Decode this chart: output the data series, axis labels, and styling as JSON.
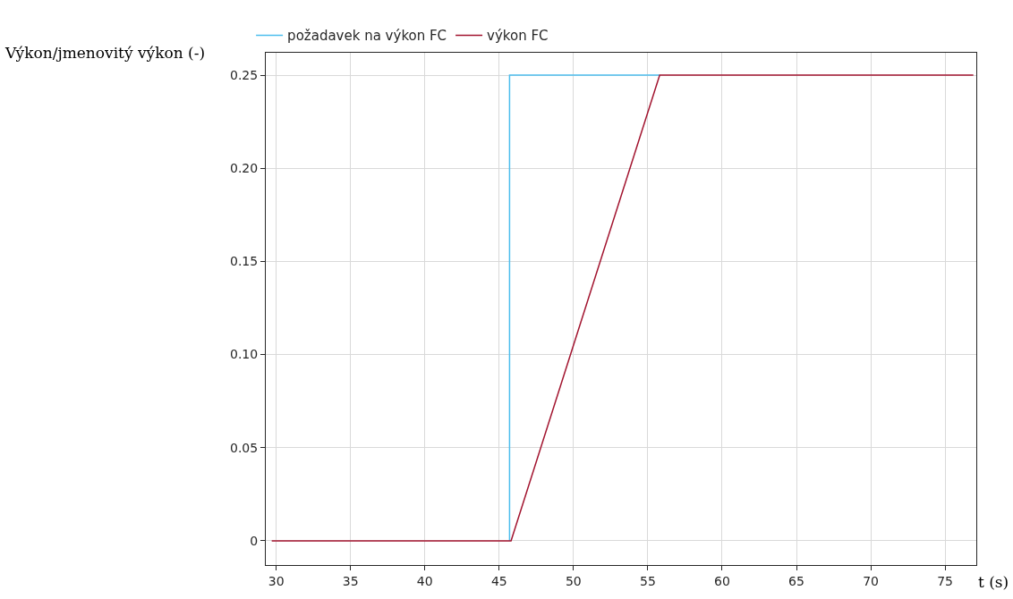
{
  "chart_data": {
    "type": "line",
    "xlabel": "t (s)",
    "ylabel": "Výkon/jmenovitý výkon (-)",
    "series": [
      {
        "name": "požadavek na výkon FC",
        "color": "#4dbeee",
        "type": "step",
        "x": [
          45.7,
          45.7,
          55.8
        ],
        "values": [
          0,
          0.25,
          0.25
        ]
      },
      {
        "name": "výkon FC",
        "color": "#a2142f",
        "x": [
          29.7,
          45.8,
          55.8,
          76.9
        ],
        "values": [
          0,
          0,
          0.25,
          0.25
        ]
      }
    ],
    "xlim": [
      29.3,
      77.1
    ],
    "xticks": [
      30,
      35,
      40,
      45,
      50,
      55,
      60,
      65,
      70,
      75
    ],
    "ylim": [
      -0.013,
      0.262
    ],
    "yticks": [
      {
        "value": 0,
        "label": "0"
      },
      {
        "value": 0.05,
        "label": "0.05"
      },
      {
        "value": 0.1,
        "label": "0.10"
      },
      {
        "value": 0.15,
        "label": "0.15"
      },
      {
        "value": 0.2,
        "label": "0.20"
      },
      {
        "value": 0.25,
        "label": "0.25"
      }
    ],
    "grid": true,
    "legend": "top left",
    "marker": "none",
    "line_style": "solid"
  }
}
